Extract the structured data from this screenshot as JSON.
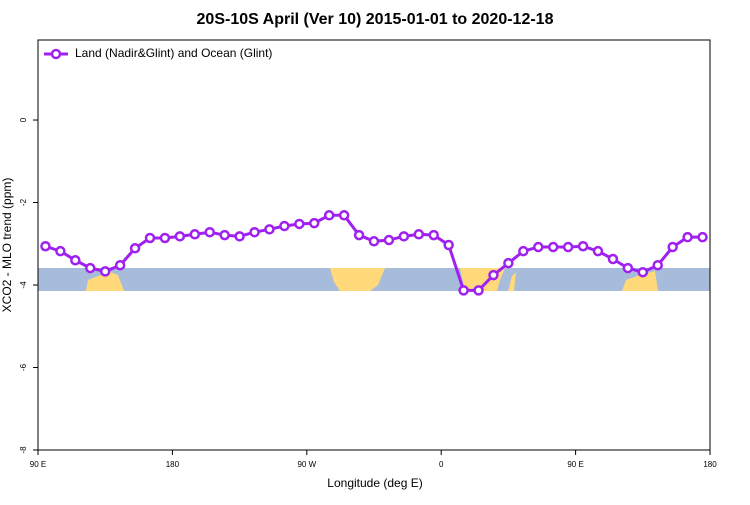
{
  "chart_data": {
    "type": "line",
    "title": "20S-10S April (Ver 10)   2015-01-01 to 2020-12-18",
    "xlabel": "Longitude (deg E)",
    "ylabel": "XCO2 - MLO trend (ppm)",
    "x": [
      95,
      105,
      115,
      125,
      135,
      145,
      155,
      165,
      175,
      185,
      195,
      205,
      215,
      225,
      235,
      245,
      255,
      265,
      275,
      285,
      295,
      305,
      315,
      325,
      335,
      345,
      355,
      365,
      375,
      385,
      395,
      405,
      415,
      425,
      435,
      445,
      455,
      465,
      475,
      485,
      495,
      505,
      515,
      525,
      535
    ],
    "series": [
      {
        "name": "Land (Nadir&Glint) and Ocean (Glint)",
        "color": "#a020f0",
        "values": [
          -3.06,
          -3.18,
          -3.4,
          -3.59,
          -3.67,
          -3.52,
          -3.11,
          -2.86,
          -2.86,
          -2.82,
          -2.77,
          -2.72,
          -2.79,
          -2.82,
          -2.72,
          -2.65,
          -2.57,
          -2.52,
          -2.5,
          -2.31,
          -2.31,
          -2.79,
          -2.94,
          -2.91,
          -2.82,
          -2.77,
          -2.79,
          -3.03,
          -4.13,
          -4.13,
          -3.76,
          -3.47,
          -3.18,
          -3.08,
          -3.08,
          -3.08,
          -3.06,
          -3.18,
          -3.37,
          -3.59,
          -3.69,
          -3.52,
          -3.08,
          -2.84,
          -2.84
        ]
      }
    ],
    "xlim": [
      90,
      540
    ],
    "xticks": [
      {
        "value": 90,
        "label": "90 E"
      },
      180,
      {
        "value": 270,
        "label": "90 W"
      },
      {
        "value": 360,
        "label": "0"
      },
      {
        "value": 450,
        "label": "90 E"
      },
      {
        "value": 540,
        "label": "180"
      }
    ],
    "ylim": [
      -8,
      1.94
    ],
    "yticks": [
      -8,
      -6,
      -4,
      -2,
      0
    ],
    "legend": "top-left"
  }
}
